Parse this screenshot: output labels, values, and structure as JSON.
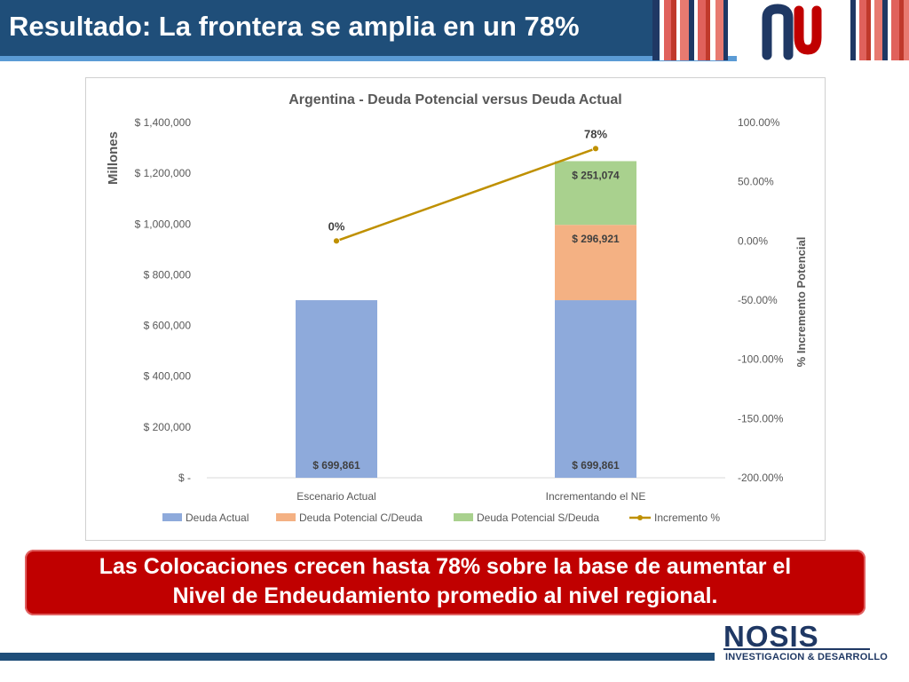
{
  "slide": {
    "title": "Resultado: La frontera se amplia en un 78%",
    "callout_line1": "Las Colocaciones crecen hasta 78% sobre la base de aumentar el",
    "callout_line2": "Nivel de Endeudamiento promedio al nivel regional.",
    "footer_brand": "NOSIS",
    "footer_sub": "INVESTIGACION & DESARROLLO",
    "colors": {
      "title_bg": "#1f4e79",
      "callout_bg": "#c00000",
      "stripe_red": "#e0615c",
      "stripe_navy": "#1f3864"
    }
  },
  "chart_data": {
    "type": "bar",
    "stacked": true,
    "title": "Argentina - Deuda Potencial versus Deuda Actual",
    "ylabel": "Millones",
    "y2label": "% Incremento Potencial",
    "categories": [
      "Escenario Actual",
      "Incrementando el NE"
    ],
    "ylim": [
      0,
      1400000
    ],
    "y2lim": [
      -200,
      100
    ],
    "yticks": [
      "$ -",
      "$ 200,000",
      "$ 400,000",
      "$ 600,000",
      "$ 800,000",
      "$ 1,000,000",
      "$ 1,200,000",
      "$ 1,400,000"
    ],
    "y2ticks": [
      "-200.00%",
      "-150.00%",
      "-100.00%",
      "-50.00%",
      "0.00%",
      "50.00%",
      "100.00%"
    ],
    "series": [
      {
        "name": "Deuda Actual",
        "color": "#8eaadb",
        "values": [
          699861,
          699861
        ],
        "labels": [
          "$ 699,861",
          "$ 699,861"
        ]
      },
      {
        "name": "Deuda Potencial C/Deuda",
        "color": "#f4b183",
        "values": [
          0,
          296921
        ],
        "labels": [
          "",
          "$ 296,921"
        ]
      },
      {
        "name": "Deuda Potencial S/Deuda",
        "color": "#a9d18e",
        "values": [
          0,
          251074
        ],
        "labels": [
          "",
          "$ 251,074"
        ]
      }
    ],
    "line": {
      "name": "Incremento %",
      "color": "#bf9000",
      "values": [
        0,
        78
      ],
      "labels": [
        "0%",
        "78%"
      ]
    },
    "legend_position": "bottom",
    "grid": false
  }
}
